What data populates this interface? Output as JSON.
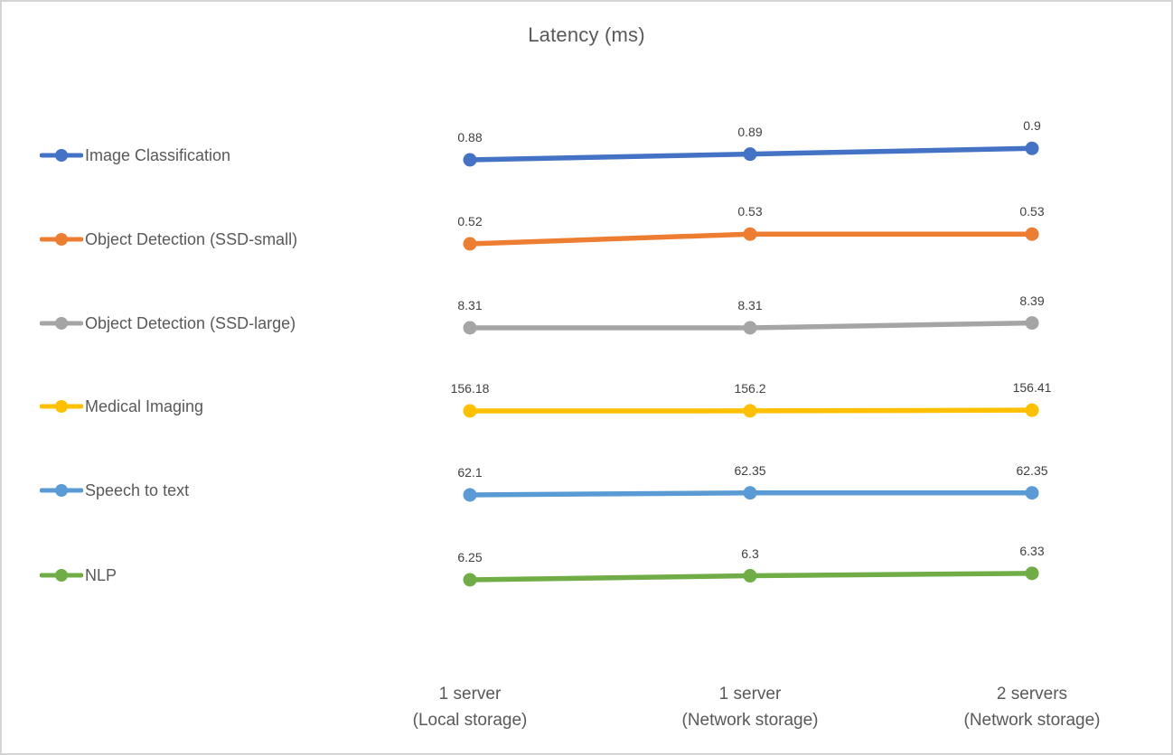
{
  "title": "Latency (ms)",
  "text_colors": {
    "title": "#595959",
    "axis": "#595959",
    "data_label": "#404040"
  },
  "chart_data": {
    "type": "line",
    "title": "Latency (ms)",
    "xlabel": "",
    "ylabel": "",
    "grid": false,
    "legend_position": "left",
    "note": "Each series is drawn in its own horizontal band with data labels above each point",
    "categories": [
      "1 server (Local storage)",
      "1 server (Network storage)",
      "2 servers (Network storage)"
    ],
    "category_labels": [
      {
        "top": "1 server",
        "bottom": "(Local storage)"
      },
      {
        "top": "1 server",
        "bottom": "(Network storage)"
      },
      {
        "top": "2 servers",
        "bottom": "(Network storage)"
      }
    ],
    "series": [
      {
        "name": "Image Classification",
        "color": "#4472C4",
        "values": [
          0.88,
          0.89,
          0.9
        ],
        "labels": [
          "0.88",
          "0.89",
          "0.9"
        ]
      },
      {
        "name": "Object Detection (SSD-small)",
        "color": "#ED7D31",
        "values": [
          0.52,
          0.53,
          0.53
        ],
        "labels": [
          "0.52",
          "0.53",
          "0.53"
        ]
      },
      {
        "name": "Object Detection (SSD-large)",
        "color": "#A5A5A5",
        "values": [
          8.31,
          8.31,
          8.39
        ],
        "labels": [
          "8.31",
          "8.31",
          "8.39"
        ]
      },
      {
        "name": "Medical Imaging",
        "color": "#FFC000",
        "values": [
          156.18,
          156.2,
          156.41
        ],
        "labels": [
          "156.18",
          "156.2",
          "156.41"
        ]
      },
      {
        "name": "Speech to text",
        "color": "#5B9BD5",
        "values": [
          62.1,
          62.35,
          62.35
        ],
        "labels": [
          "62.1",
          "62.35",
          "62.35"
        ]
      },
      {
        "name": "NLP",
        "color": "#70AD47",
        "values": [
          6.25,
          6.3,
          6.33
        ],
        "labels": [
          "6.25",
          "6.3",
          "6.33"
        ]
      }
    ]
  }
}
